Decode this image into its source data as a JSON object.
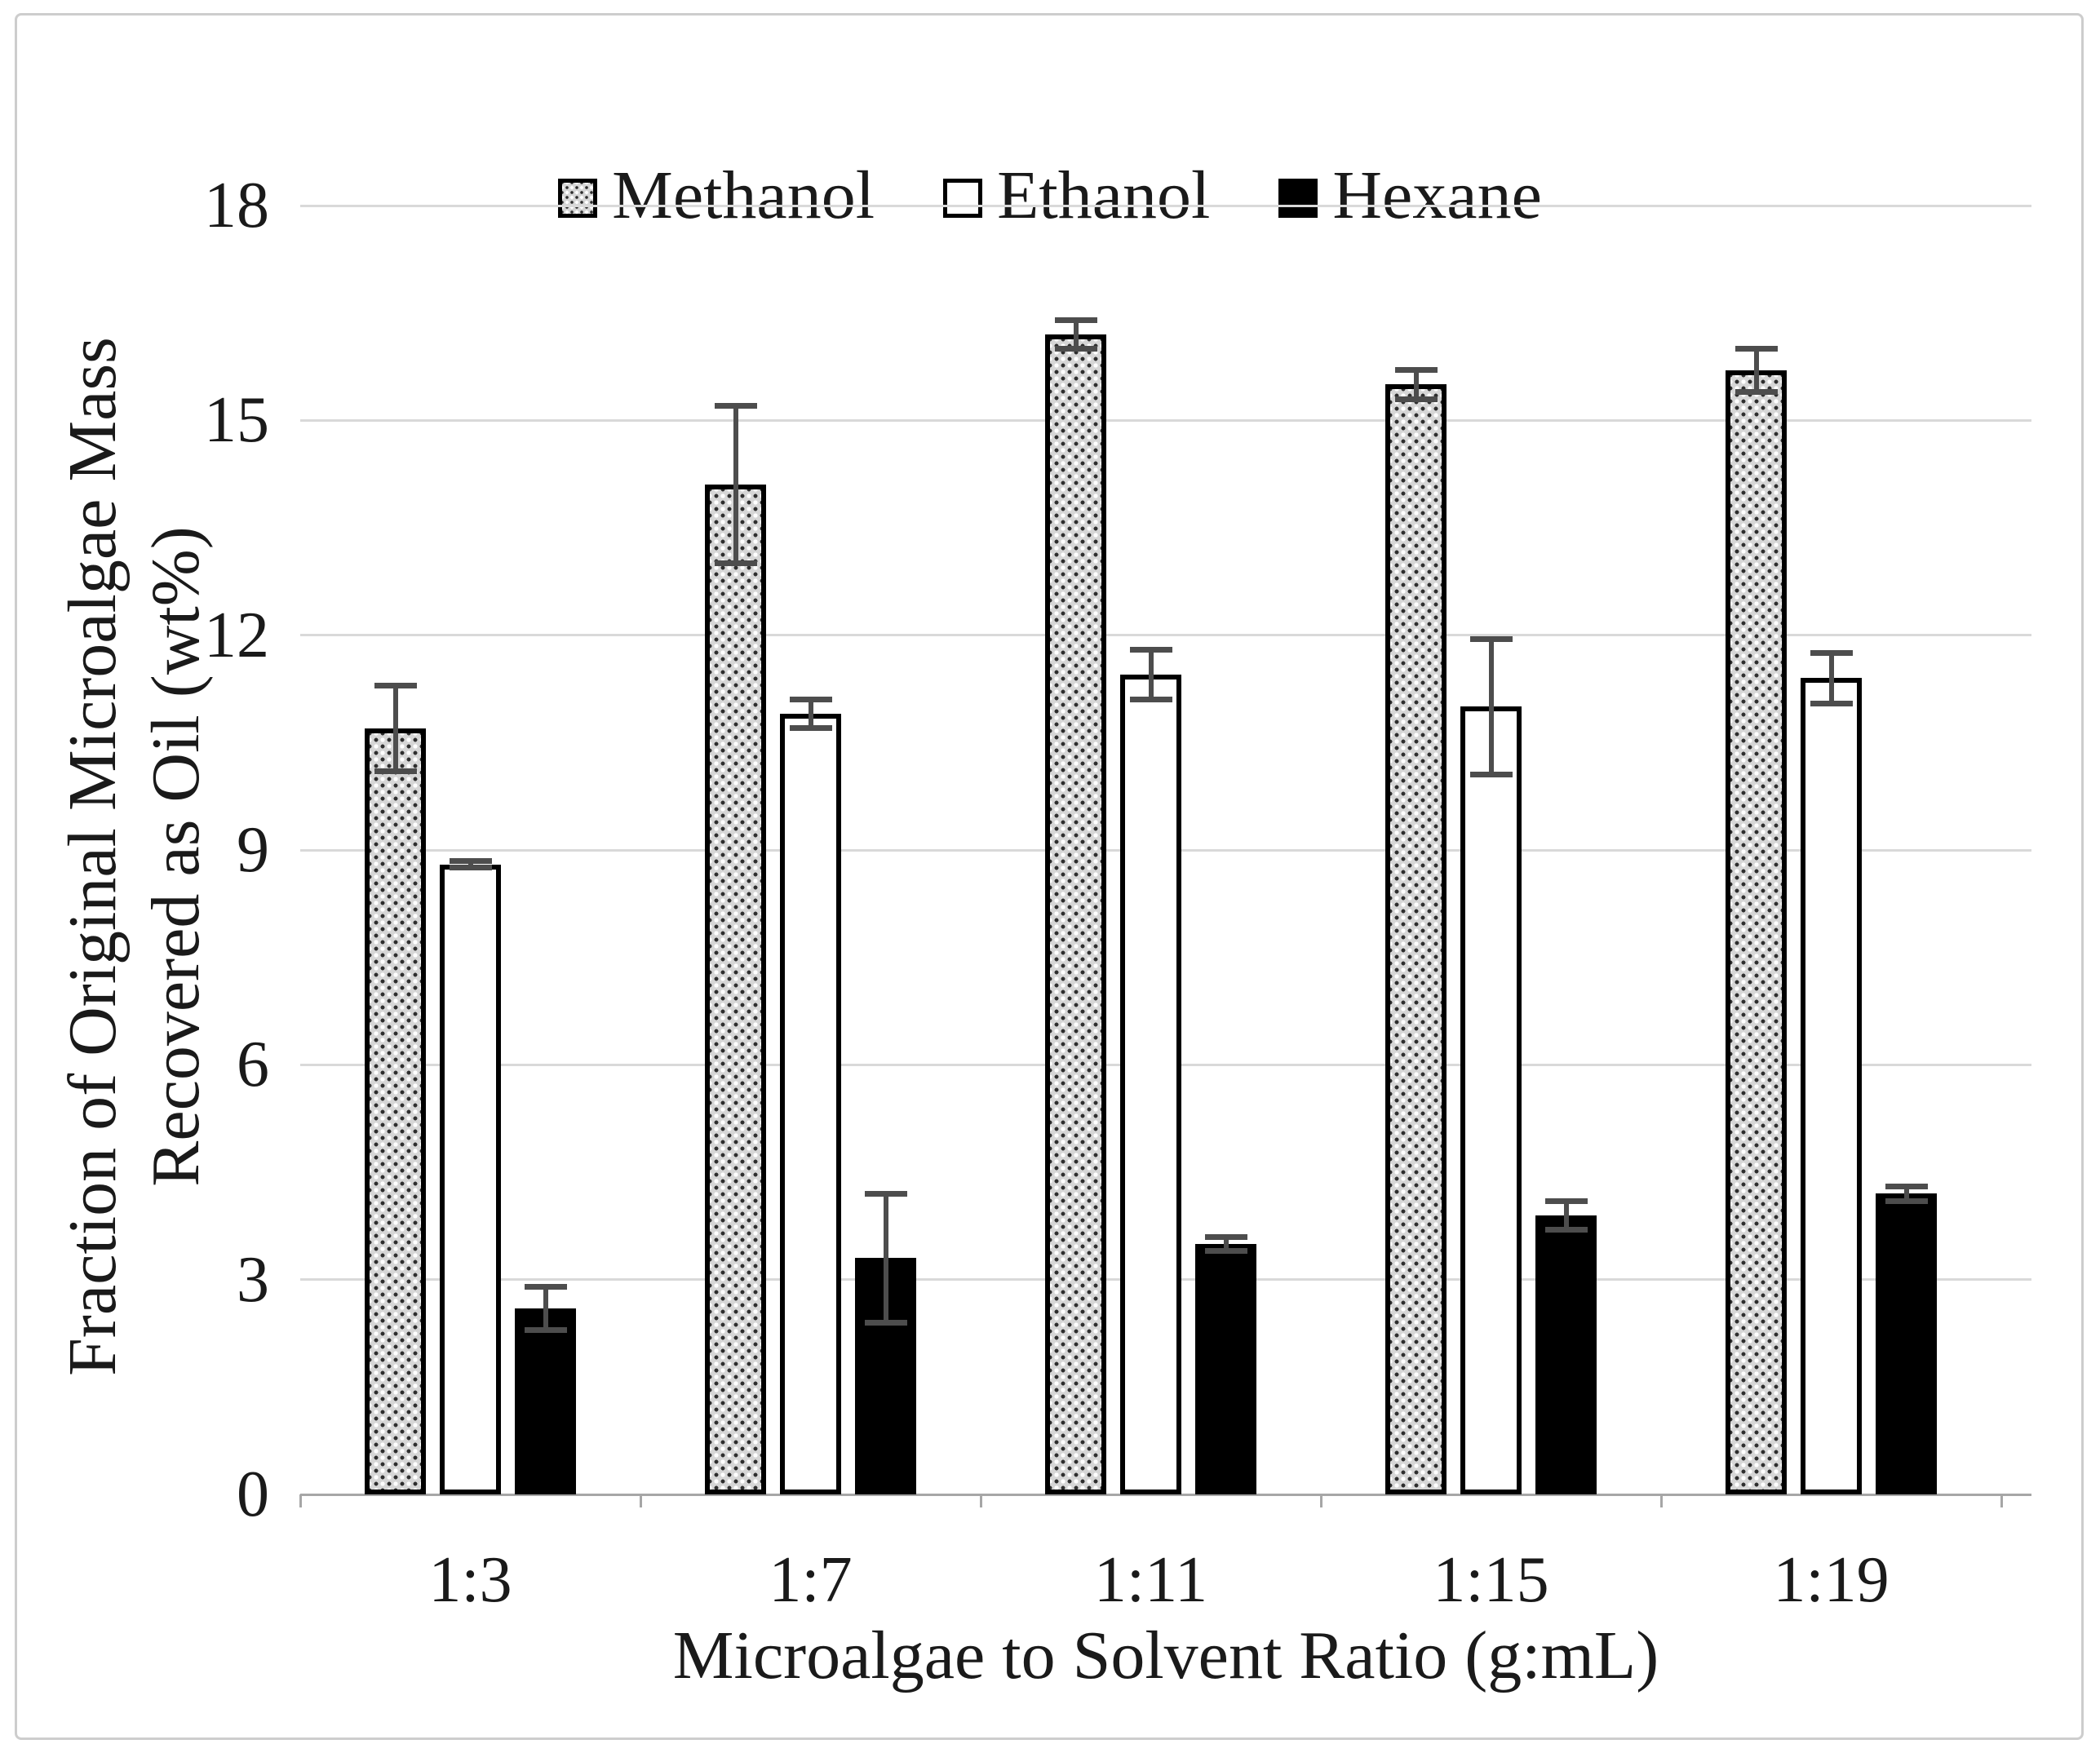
{
  "legend": {
    "items": [
      {
        "label": "Methanol",
        "fill": "dotted-gray"
      },
      {
        "label": "Ethanol",
        "fill": "white"
      },
      {
        "label": "Hexane",
        "fill": "black"
      }
    ]
  },
  "y_axis": {
    "title_line1": "Fraction of Original Microalgae Mass",
    "title_line2": "Recovered as Oil (wt%)",
    "ticks": [
      "0",
      "3",
      "6",
      "9",
      "12",
      "15",
      "18"
    ]
  },
  "x_axis": {
    "title": "Microalgae to Solvent Ratio (g:mL)",
    "categories": [
      "1:3",
      "1:7",
      "1:11",
      "1:15",
      "1:19"
    ]
  },
  "chart_data": {
    "type": "bar",
    "title": "",
    "xlabel": "Microalgae to Solvent Ratio (g:mL)",
    "ylabel": "Fraction of Original Microalgae Mass Recovered as Oil (wt%)",
    "categories": [
      "1:3",
      "1:7",
      "1:11",
      "1:15",
      "1:19"
    ],
    "series": [
      {
        "name": "Methanol",
        "fill": "dotted-gray",
        "values": [
          10.7,
          14.1,
          16.2,
          15.5,
          15.7
        ],
        "errors": [
          0.6,
          1.1,
          0.2,
          0.2,
          0.3
        ]
      },
      {
        "name": "Ethanol",
        "fill": "white",
        "values": [
          8.8,
          10.9,
          11.45,
          11.0,
          11.4
        ],
        "errors": [
          0.05,
          0.2,
          0.35,
          0.95,
          0.35
        ]
      },
      {
        "name": "Hexane",
        "fill": "black",
        "values": [
          2.6,
          3.3,
          3.5,
          3.9,
          4.2
        ],
        "errors": [
          0.3,
          0.9,
          0.1,
          0.2,
          0.1
        ]
      }
    ],
    "ylim": [
      0,
      18
    ],
    "ytick_step": 3,
    "grid": true,
    "legend_position": "top-center",
    "colors": {
      "grid": "#d9d9d9",
      "axis": "#a6a6a6",
      "error_bar": "#4d4d4d",
      "bar_border": "#000000",
      "methanol_base": "#d6d6d6",
      "frame_border": "#cdcdcd"
    }
  }
}
